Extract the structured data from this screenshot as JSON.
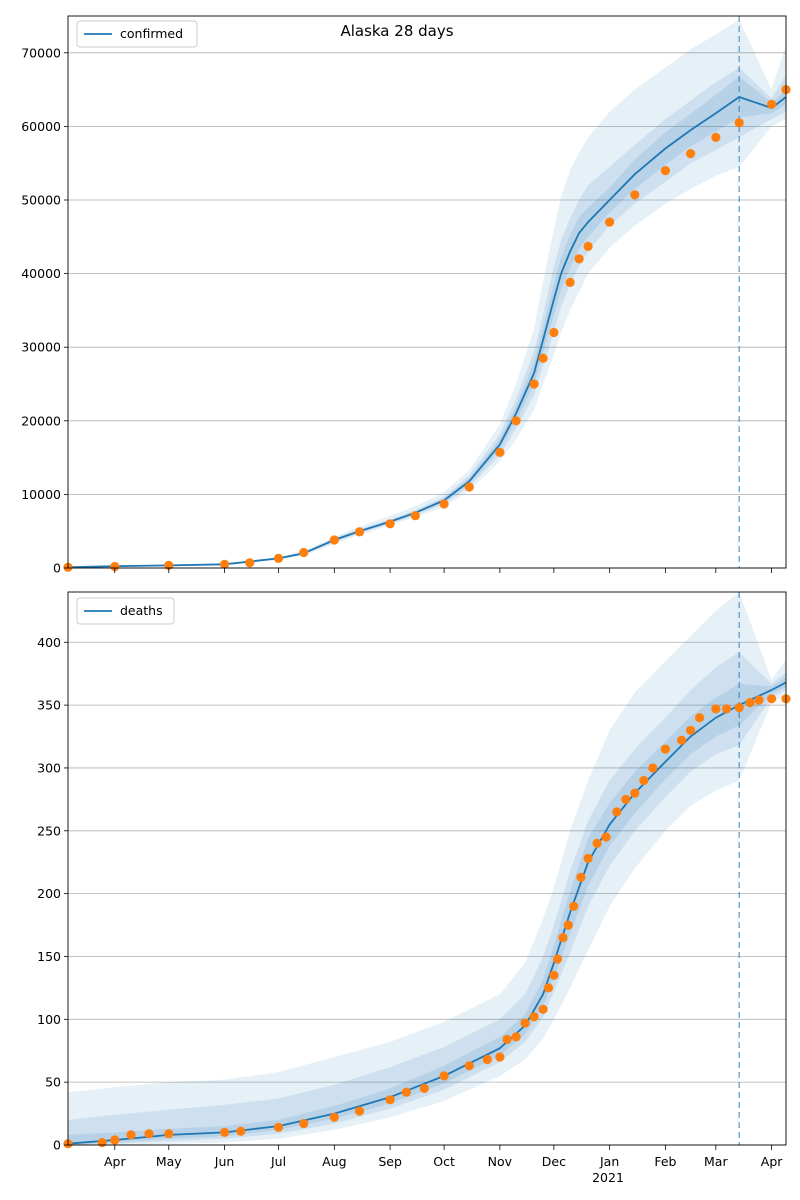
{
  "title": "Alaska 28 days",
  "colors": {
    "model_line": "#1f77b4",
    "observed_points": "#ff7f0e",
    "band": "#1f77b4",
    "grid": "#b0b0b0"
  },
  "chart_data": [
    {
      "type": "line",
      "legend": "confirmed",
      "legend_position": "top-left",
      "grid": "horizontal",
      "ylim": [
        0,
        75000
      ],
      "y_ticks": [
        0,
        10000,
        20000,
        30000,
        40000,
        50000,
        60000,
        70000
      ],
      "xlim": [
        "2020-03-06",
        "2021-04-09"
      ],
      "forecast_start": "2021-03-14",
      "model_x": [
        "2020-03-06",
        "2020-04-01",
        "2020-05-01",
        "2020-06-01",
        "2020-07-01",
        "2020-07-15",
        "2020-08-01",
        "2020-08-15",
        "2020-09-01",
        "2020-09-15",
        "2020-10-01",
        "2020-10-15",
        "2020-11-01",
        "2020-11-10",
        "2020-11-20",
        "2020-11-25",
        "2020-12-01",
        "2020-12-05",
        "2020-12-10",
        "2020-12-15",
        "2020-12-20",
        "2021-01-01",
        "2021-01-15",
        "2021-02-01",
        "2021-02-15",
        "2021-03-01",
        "2021-03-14",
        "2021-04-01",
        "2021-04-09"
      ],
      "model_y": [
        100,
        250,
        350,
        500,
        1300,
        2000,
        3800,
        5000,
        6300,
        7500,
        9200,
        11800,
        16800,
        21000,
        26500,
        31000,
        36500,
        40000,
        43000,
        45500,
        47000,
        50000,
        53500,
        57000,
        59500,
        61800,
        64000,
        62500,
        64000
      ],
      "band_outer_lower": [
        0,
        150,
        250,
        400,
        1100,
        1700,
        3300,
        4500,
        5800,
        6900,
        8300,
        10500,
        14500,
        17500,
        21500,
        25000,
        29000,
        32000,
        35000,
        37500,
        40000,
        43500,
        46500,
        49500,
        51500,
        53300,
        54500,
        60000,
        61000
      ],
      "band_outer_upper": [
        200,
        350,
        450,
        650,
        1500,
        2300,
        4200,
        5600,
        7100,
        8400,
        10300,
        13300,
        19500,
        25000,
        32500,
        39000,
        46000,
        50500,
        54000,
        56500,
        58500,
        62000,
        65000,
        68000,
        70500,
        72500,
        74500,
        65000,
        71000
      ],
      "band_mid_lower": [
        50,
        180,
        290,
        440,
        1180,
        1820,
        3500,
        4700,
        6000,
        7150,
        8700,
        11000,
        15400,
        19000,
        23500,
        27500,
        32000,
        35500,
        38500,
        41000,
        43000,
        46500,
        49500,
        52500,
        55000,
        56800,
        58500,
        61000,
        62000
      ],
      "band_mid_upper": [
        150,
        320,
        410,
        560,
        1420,
        2180,
        4100,
        5300,
        6600,
        7850,
        9700,
        12600,
        18200,
        23000,
        29500,
        34500,
        41000,
        44500,
        47500,
        50000,
        52000,
        54500,
        57500,
        61000,
        63500,
        66000,
        68000,
        63800,
        67000
      ],
      "band_inner_lower": [
        80,
        210,
        320,
        470,
        1240,
        1900,
        3650,
        4850,
        6150,
        7320,
        8950,
        11400,
        16100,
        20000,
        25000,
        29300,
        34300,
        37800,
        40800,
        43300,
        45000,
        48300,
        51500,
        54800,
        57300,
        59300,
        61200,
        61800,
        63000
      ],
      "band_inner_upper": [
        120,
        290,
        380,
        530,
        1360,
        2100,
        3950,
        5150,
        6450,
        7680,
        9450,
        12200,
        17500,
        22000,
        28000,
        32700,
        38700,
        42200,
        45200,
        47700,
        49000,
        51700,
        55500,
        59200,
        61700,
        64300,
        66800,
        63200,
        65000
      ],
      "observed_x": [
        "2020-03-06",
        "2020-04-01",
        "2020-05-01",
        "2020-06-01",
        "2020-06-15",
        "2020-07-01",
        "2020-07-15",
        "2020-08-01",
        "2020-08-15",
        "2020-09-01",
        "2020-09-15",
        "2020-10-01",
        "2020-10-15",
        "2020-11-01",
        "2020-11-10",
        "2020-11-20",
        "2020-11-25",
        "2020-12-01",
        "2020-12-10",
        "2020-12-15",
        "2020-12-20",
        "2021-01-01",
        "2021-01-15",
        "2021-02-01",
        "2021-02-15",
        "2021-03-01",
        "2021-03-14",
        "2021-04-01",
        "2021-04-09"
      ],
      "observed_y": [
        100,
        200,
        350,
        500,
        700,
        1300,
        2100,
        3800,
        4900,
        6000,
        7100,
        8700,
        11000,
        15700,
        20000,
        25000,
        28500,
        32000,
        38800,
        42000,
        43700,
        47000,
        50700,
        54000,
        56300,
        58500,
        60500,
        63000,
        65000
      ]
    },
    {
      "type": "line",
      "legend": "deaths",
      "legend_position": "top-left",
      "grid": "horizontal",
      "ylim": [
        0,
        440
      ],
      "y_ticks": [
        0,
        50,
        100,
        150,
        200,
        250,
        300,
        350,
        400
      ],
      "x_tick_labels": [
        "Apr",
        "May",
        "Jun",
        "Jul",
        "Aug",
        "Sep",
        "Oct",
        "Nov",
        "Dec",
        "Jan",
        "Feb",
        "Mar",
        "Apr"
      ],
      "x_tick_dates": [
        "2020-04-01",
        "2020-05-01",
        "2020-06-01",
        "2020-07-01",
        "2020-08-01",
        "2020-09-01",
        "2020-10-01",
        "2020-11-01",
        "2020-12-01",
        "2021-01-01",
        "2021-02-01",
        "2021-03-01",
        "2021-04-01"
      ],
      "x_year_label": "2021",
      "xlim": [
        "2020-03-06",
        "2021-04-09"
      ],
      "forecast_start": "2021-03-14",
      "model_x": [
        "2020-03-06",
        "2020-04-01",
        "2020-05-01",
        "2020-06-01",
        "2020-07-01",
        "2020-08-01",
        "2020-09-01",
        "2020-10-01",
        "2020-11-01",
        "2020-11-15",
        "2020-11-25",
        "2020-12-01",
        "2020-12-10",
        "2020-12-20",
        "2021-01-01",
        "2021-01-15",
        "2021-02-01",
        "2021-02-15",
        "2021-03-01",
        "2021-03-14",
        "2021-04-01",
        "2021-04-09"
      ],
      "model_y": [
        1,
        4,
        8,
        10,
        15,
        25,
        38,
        55,
        77,
        95,
        120,
        145,
        185,
        225,
        255,
        280,
        305,
        325,
        340,
        350,
        362,
        368
      ],
      "band_outer_lower": [
        0,
        0,
        1,
        2,
        5,
        12,
        22,
        35,
        55,
        68,
        85,
        100,
        125,
        155,
        190,
        220,
        250,
        270,
        282,
        290,
        352,
        358
      ],
      "band_outer_upper": [
        42,
        46,
        50,
        52,
        58,
        70,
        82,
        98,
        120,
        145,
        180,
        205,
        250,
        290,
        330,
        360,
        385,
        405,
        425,
        440,
        370,
        386
      ],
      "band_mid_lower": [
        0,
        1,
        3,
        5,
        9,
        17,
        29,
        44,
        66,
        82,
        102,
        122,
        153,
        190,
        222,
        250,
        277,
        297,
        311,
        318,
        356,
        362
      ],
      "band_mid_upper": [
        20,
        24,
        28,
        32,
        37,
        48,
        62,
        78,
        100,
        120,
        150,
        175,
        218,
        258,
        290,
        315,
        340,
        362,
        380,
        392,
        367,
        376
      ],
      "band_inner_lower": [
        0,
        2,
        5,
        7,
        12,
        21,
        33,
        49,
        71,
        88,
        110,
        133,
        168,
        206,
        238,
        264,
        291,
        311,
        325,
        334,
        359,
        364
      ],
      "band_inner_upper": [
        8,
        10,
        13,
        15,
        20,
        31,
        45,
        63,
        86,
        104,
        132,
        159,
        202,
        244,
        272,
        297,
        321,
        341,
        356,
        367,
        365,
        372
      ],
      "observed_x": [
        "2020-03-06",
        "2020-03-25",
        "2020-04-01",
        "2020-04-10",
        "2020-04-20",
        "2020-05-01",
        "2020-06-01",
        "2020-06-10",
        "2020-07-01",
        "2020-07-15",
        "2020-08-01",
        "2020-08-15",
        "2020-09-01",
        "2020-09-10",
        "2020-09-20",
        "2020-10-01",
        "2020-10-15",
        "2020-10-25",
        "2020-11-01",
        "2020-11-05",
        "2020-11-10",
        "2020-11-15",
        "2020-11-20",
        "2020-11-25",
        "2020-11-28",
        "2020-12-01",
        "2020-12-03",
        "2020-12-06",
        "2020-12-09",
        "2020-12-12",
        "2020-12-16",
        "2020-12-20",
        "2020-12-25",
        "2020-12-30",
        "2021-01-05",
        "2021-01-10",
        "2021-01-15",
        "2021-01-20",
        "2021-01-25",
        "2021-02-01",
        "2021-02-10",
        "2021-02-15",
        "2021-02-20",
        "2021-03-01",
        "2021-03-07",
        "2021-03-14",
        "2021-03-20",
        "2021-03-25",
        "2021-04-01",
        "2021-04-09"
      ],
      "observed_y": [
        1,
        2,
        4,
        8,
        9,
        9,
        10,
        11,
        14,
        17,
        22,
        27,
        36,
        42,
        45,
        55,
        63,
        68,
        70,
        84,
        86,
        97,
        102,
        108,
        125,
        135,
        148,
        165,
        175,
        190,
        213,
        228,
        240,
        245,
        265,
        275,
        280,
        290,
        300,
        315,
        322,
        330,
        340,
        347,
        347,
        348,
        352,
        354,
        355,
        355
      ]
    }
  ]
}
